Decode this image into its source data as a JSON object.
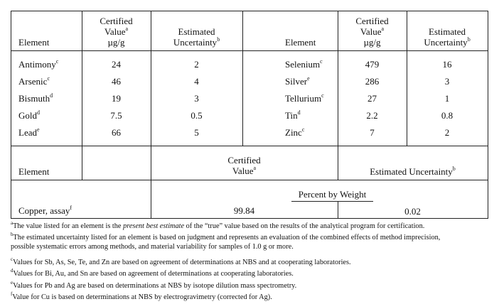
{
  "upper_header": {
    "element": "Element",
    "certified_value": [
      "Certified",
      "Value",
      "µg/g"
    ],
    "certified_value_sup": "a",
    "estimated_uncertainty": [
      "Estimated",
      "Uncertainty"
    ],
    "estimated_uncertainty_sup": "b"
  },
  "left_rows": [
    {
      "element": "Antimony",
      "sup": "c",
      "value": "24",
      "uncertainty": "2"
    },
    {
      "element": "Arsenic",
      "sup": "c",
      "value": "46",
      "uncertainty": "4"
    },
    {
      "element": "Bismuth",
      "sup": "d",
      "value": "19",
      "uncertainty": "3"
    },
    {
      "element": "Gold",
      "sup": "d",
      "value": "7.5",
      "uncertainty": "0.5"
    },
    {
      "element": "Lead",
      "sup": "e",
      "value": "66",
      "uncertainty": "5"
    }
  ],
  "right_rows": [
    {
      "element": "Selenium",
      "sup": "c",
      "value": "479",
      "uncertainty": "16"
    },
    {
      "element": "Silver",
      "sup": "e",
      "value": "286",
      "uncertainty": "3"
    },
    {
      "element": "Tellurium",
      "sup": "c",
      "value": "27",
      "uncertainty": "1"
    },
    {
      "element": "Tin",
      "sup": "d",
      "value": "2.2",
      "uncertainty": "0.8"
    },
    {
      "element": "Zinc",
      "sup": "c",
      "value": "7",
      "uncertainty": "2"
    }
  ],
  "lower_header": {
    "element": "Element",
    "certified_value": [
      "Certified",
      "Value"
    ],
    "certified_value_sup": "a",
    "estimated_uncertainty": "Estimated Uncertainty",
    "estimated_uncertainty_sup": "b",
    "unit": "Percent by Weight"
  },
  "copper_row": {
    "element": "Copper, assay",
    "sup": "f",
    "value": "99.84",
    "uncertainty": "0.02"
  },
  "footnotes": [
    {
      "mark": "a",
      "parts": [
        "The value listed for an element is the ",
        "present best estimate",
        " of the “true” value based on the results of the analytical program for certification."
      ]
    },
    {
      "mark": "b",
      "lines": [
        "The estimated uncertainty listed for an element is based on judgment and represents an evaluation of the combined effects of method imprecision,",
        "possible systematic errors among methods, and material variability for samples of 1.0 g or more."
      ]
    },
    {
      "mark": "c",
      "text": "Values for Sb, As, Se, Te, and Zn are based on agreement of determinations at NBS and at cooperating laboratories."
    },
    {
      "mark": "d",
      "text": "Values for Bi, Au, and Sn are based on agreement of determinations at cooperating laboratories."
    },
    {
      "mark": "e",
      "text": "Values for Pb and Ag are based on determinations at NBS by isotope dilution mass spectrometry."
    },
    {
      "mark": "f",
      "text": "Value for Cu is based on determinations at NBS by electrogravimetry (corrected for Ag)."
    }
  ]
}
